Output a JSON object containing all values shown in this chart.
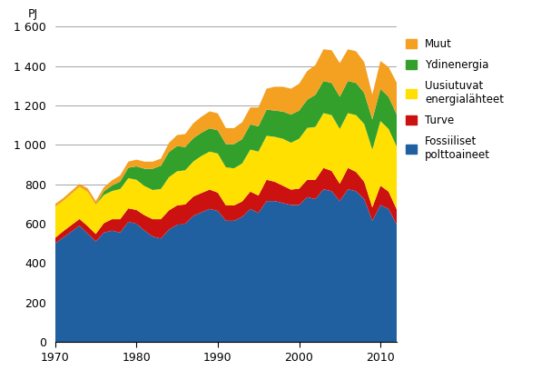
{
  "years": [
    1970,
    1971,
    1972,
    1973,
    1974,
    1975,
    1976,
    1977,
    1978,
    1979,
    1980,
    1981,
    1982,
    1983,
    1984,
    1985,
    1986,
    1987,
    1988,
    1989,
    1990,
    1991,
    1992,
    1993,
    1994,
    1995,
    1996,
    1997,
    1998,
    1999,
    2000,
    2001,
    2002,
    2003,
    2004,
    2005,
    2006,
    2007,
    2008,
    2009,
    2010,
    2011,
    2012
  ],
  "fossiiliset": [
    500,
    530,
    560,
    590,
    550,
    510,
    555,
    565,
    555,
    610,
    600,
    565,
    535,
    525,
    570,
    595,
    600,
    640,
    658,
    675,
    665,
    615,
    615,
    635,
    675,
    655,
    715,
    715,
    705,
    695,
    695,
    735,
    725,
    775,
    765,
    715,
    775,
    765,
    725,
    615,
    695,
    675,
    595
  ],
  "turve": [
    28,
    32,
    33,
    34,
    38,
    38,
    48,
    58,
    68,
    68,
    70,
    78,
    88,
    98,
    98,
    98,
    98,
    98,
    98,
    98,
    93,
    78,
    78,
    78,
    88,
    88,
    108,
    98,
    88,
    78,
    83,
    88,
    98,
    108,
    103,
    88,
    108,
    98,
    88,
    68,
    98,
    88,
    78
  ],
  "uusiutuvat": [
    158,
    153,
    158,
    163,
    173,
    148,
    143,
    143,
    153,
    153,
    153,
    148,
    148,
    153,
    168,
    173,
    173,
    178,
    188,
    193,
    198,
    193,
    188,
    193,
    213,
    223,
    223,
    228,
    238,
    238,
    253,
    263,
    268,
    278,
    283,
    278,
    278,
    288,
    293,
    293,
    328,
    318,
    318
  ],
  "ydinenergia": [
    0,
    0,
    0,
    0,
    0,
    0,
    18,
    28,
    38,
    53,
    68,
    88,
    108,
    118,
    128,
    128,
    118,
    118,
    118,
    118,
    118,
    118,
    123,
    123,
    128,
    128,
    133,
    133,
    138,
    143,
    143,
    143,
    163,
    163,
    163,
    163,
    163,
    163,
    158,
    153,
    163,
    163,
    163
  ],
  "muut": [
    14,
    15,
    15,
    15,
    19,
    19,
    21,
    26,
    31,
    31,
    34,
    36,
    36,
    36,
    46,
    56,
    66,
    76,
    81,
    86,
    86,
    81,
    81,
    86,
    86,
    96,
    106,
    121,
    126,
    131,
    136,
    146,
    151,
    161,
    166,
    171,
    161,
    161,
    156,
    126,
    141,
    151,
    161
  ],
  "colors": {
    "fossiiliset": "#2060A0",
    "turve": "#CC1111",
    "uusiutuvat": "#FFE000",
    "ydinenergia": "#33A02C",
    "muut": "#F4A020"
  },
  "ylabel": "PJ",
  "ylim": [
    0,
    1600
  ],
  "yticks": [
    0,
    200,
    400,
    600,
    800,
    1000,
    1200,
    1400,
    1600
  ],
  "ytick_labels": [
    "0",
    "200",
    "400",
    "600",
    "800",
    "1 000",
    "1 200",
    "1 400",
    "1 600"
  ],
  "xlim": [
    1970,
    2012
  ],
  "xticks": [
    1970,
    1980,
    1990,
    2000,
    2010
  ],
  "legend_labels": [
    "Muut",
    "Ydinenergia",
    "Uusiutuvat\nenergialähteet",
    "Turve",
    "Fossiiliset\npolttoaineet"
  ],
  "legend_colors": [
    "#F4A020",
    "#33A02C",
    "#FFE000",
    "#CC1111",
    "#2060A0"
  ]
}
